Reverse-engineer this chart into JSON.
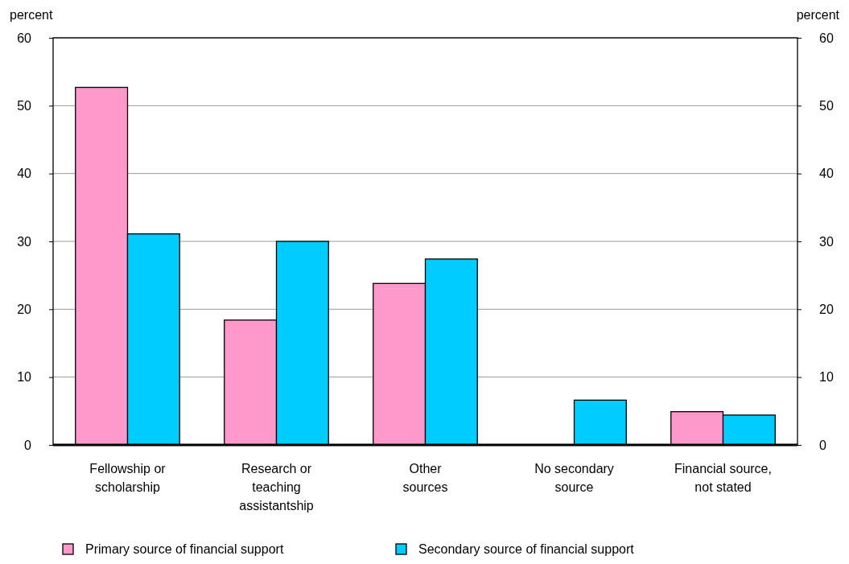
{
  "chart_data": {
    "type": "bar",
    "ylabel": "percent",
    "y2label": "percent",
    "categories": [
      "Fellowship or\nscholarship",
      "Research or\nteaching\nassistantship",
      "Other\nsources",
      "No secondary\nsource",
      "Financial source,\nnot stated"
    ],
    "series": [
      {
        "name": "Primary source of financial support",
        "color": "#ff99cc",
        "values": [
          52.7,
          18.4,
          23.8,
          null,
          4.9
        ]
      },
      {
        "name": "Secondary source of financial support",
        "color": "#00ccff",
        "values": [
          31.1,
          30.0,
          27.4,
          6.6,
          4.4
        ]
      }
    ],
    "ylim": [
      0,
      60
    ],
    "yticks": [
      0,
      10,
      20,
      30,
      40,
      50,
      60
    ],
    "y2lim": [
      0,
      60
    ],
    "y2ticks": [
      0,
      10,
      20,
      30,
      40,
      50,
      60
    ],
    "grid": "y",
    "legend": "bottom"
  }
}
